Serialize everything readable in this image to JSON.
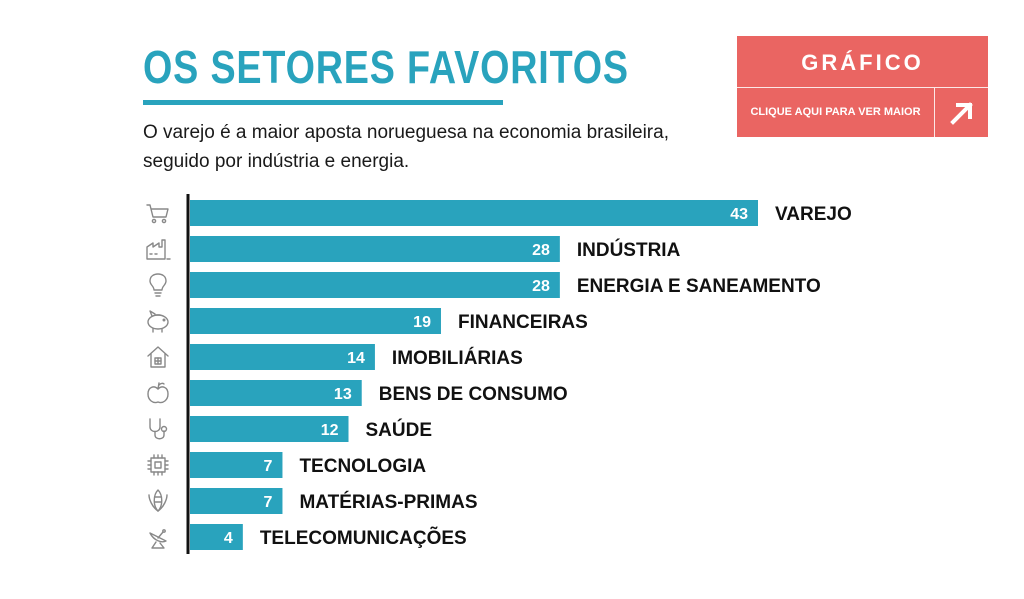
{
  "header": {
    "title": "OS SETORES FAVORITOS",
    "subtitle": "O varejo é a maior aposta norueguesa na economia brasileira, seguido por indústria e energia."
  },
  "promo": {
    "label": "GRÁFICO",
    "link_text": "CLIQUE AQUI PARA VER MAIOR",
    "arrow_icon": "arrow-up-right-icon"
  },
  "colors": {
    "accent": "#29a3bd",
    "promo": "#ea6562",
    "text": "#1a1a1a",
    "icon": "#888888"
  },
  "chart_data": {
    "type": "bar",
    "orientation": "horizontal",
    "title": "OS SETORES FAVORITOS",
    "xlabel": "",
    "ylabel": "",
    "xlim": [
      0,
      43
    ],
    "grid": false,
    "categories": [
      "VAREJO",
      "INDÚSTRIA",
      "ENERGIA E SANEAMENTO",
      "FINANCEIRAS",
      "IMOBILIÁRIAS",
      "BENS DE CONSUMO",
      "SAÚDE",
      "TECNOLOGIA",
      "MATÉRIAS-PRIMAS",
      "TELECOMUNICAÇÕES"
    ],
    "values": [
      43,
      28,
      28,
      19,
      14,
      13,
      12,
      7,
      7,
      4
    ],
    "icons": [
      "shopping-cart-icon",
      "factory-icon",
      "lightbulb-icon",
      "piggy-bank-icon",
      "house-icon",
      "apple-icon",
      "stethoscope-icon",
      "microchip-icon",
      "corn-icon",
      "satellite-dish-icon"
    ]
  }
}
